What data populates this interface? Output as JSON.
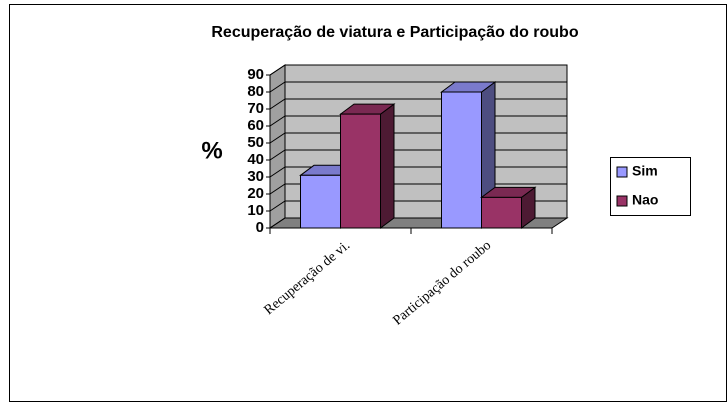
{
  "chart_data": {
    "type": "bar3d",
    "title": "Recuperação de viatura e Participação do roubo",
    "y_label": "%",
    "categories": [
      "Recuperação de vi.",
      "Participação do roubo"
    ],
    "series": [
      {
        "name": "Sim",
        "color": "#9999ff",
        "values": [
          31,
          80
        ]
      },
      {
        "name": "Nao",
        "color": "#993366",
        "values": [
          67,
          18
        ]
      }
    ],
    "ylim": [
      0,
      90
    ],
    "yticks": [
      0,
      10,
      20,
      30,
      40,
      50,
      60,
      70,
      80,
      90
    ],
    "grid": true,
    "legend": "right"
  }
}
